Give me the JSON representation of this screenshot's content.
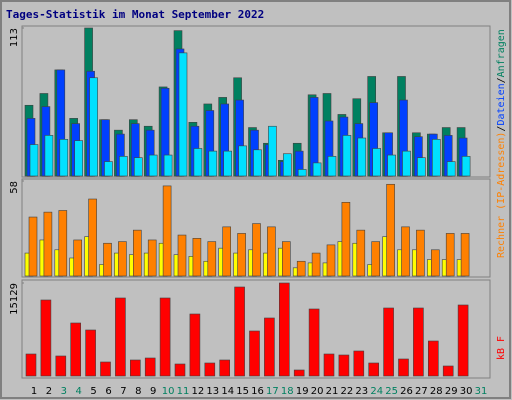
{
  "chart_data": [
    {
      "type": "bar",
      "title": "Tages-Statistik im Monat September 2022",
      "legend_separator": "/",
      "ylim": [
        0,
        113
      ],
      "yticks": [
        113
      ],
      "series": [
        {
          "name": "Anfragen",
          "color": "#008060",
          "values": [
            54,
            63,
            81,
            44,
            113,
            43,
            35,
            43,
            38,
            68,
            111,
            41,
            55,
            60,
            75,
            37,
            25,
            12,
            25,
            62,
            63,
            47,
            59,
            76,
            33,
            76,
            33,
            32,
            37,
            37,
            null
          ]
        },
        {
          "name": "Dateien",
          "color": "#0040ff",
          "values": [
            44,
            53,
            81,
            40,
            80,
            43,
            32,
            40,
            35,
            67,
            97,
            38,
            50,
            55,
            58,
            35,
            24,
            11,
            19,
            60,
            42,
            45,
            40,
            56,
            33,
            58,
            30,
            32,
            31,
            29,
            null
          ]
        },
        {
          "color": "#00e0ff",
          "values": [
            24,
            31,
            28,
            27,
            75,
            11,
            15,
            14,
            16,
            16,
            94,
            21,
            19,
            19,
            23,
            20,
            38,
            17,
            5,
            10,
            15,
            31,
            29,
            21,
            16,
            19,
            14,
            28,
            11,
            15,
            null
          ]
        }
      ]
    },
    {
      "type": "bar",
      "ylim": [
        0,
        58
      ],
      "yticks": [
        58
      ],
      "series": [
        {
          "color": "#ffff00",
          "values": [
            14,
            22,
            16,
            11,
            24,
            7,
            14,
            13,
            14,
            20,
            13,
            12,
            9,
            17,
            14,
            16,
            14,
            17,
            5,
            8,
            8,
            21,
            20,
            7,
            24,
            16,
            16,
            10,
            10,
            10,
            null
          ]
        },
        {
          "name": "Rechner (IP-Adressen)",
          "color": "#ff8000",
          "values": [
            36,
            39,
            40,
            22,
            47,
            20,
            21,
            28,
            22,
            55,
            25,
            23,
            21,
            30,
            26,
            32,
            30,
            21,
            9,
            14,
            19,
            45,
            28,
            21,
            56,
            30,
            28,
            16,
            26,
            26,
            null
          ]
        }
      ]
    },
    {
      "type": "bar",
      "ylim": [
        0,
        15129
      ],
      "yticks": [
        15129
      ],
      "categories": [
        "1",
        "2",
        "3",
        "4",
        "5",
        "6",
        "7",
        "8",
        "9",
        "10",
        "11",
        "12",
        "13",
        "14",
        "15",
        "16",
        "17",
        "18",
        "19",
        "20",
        "21",
        "22",
        "23",
        "24",
        "25",
        "26",
        "27",
        "28",
        "29",
        "30",
        "31"
      ],
      "label_colors": [
        "#000",
        "#000",
        "#008060",
        "#008060",
        "#000",
        "#000",
        "#000",
        "#000",
        "#000",
        "#008060",
        "#008060",
        "#000",
        "#000",
        "#000",
        "#000",
        "#000",
        "#008060",
        "#008060",
        "#000",
        "#000",
        "#000",
        "#000",
        "#000",
        "#008060",
        "#008060",
        "#000",
        "#000",
        "#000",
        "#000",
        "#000",
        "#008060"
      ],
      "series": [
        {
          "name": "kB F",
          "color": "#ff0000",
          "values": [
            3579,
            12365,
            3254,
            8622,
            7483,
            2278,
            12690,
            2603,
            2928,
            12690,
            1952,
            10086,
            2115,
            2603,
            14479,
            7321,
            9436,
            15129,
            976,
            10900,
            3579,
            3416,
            4067,
            2115,
            11062,
            2766,
            11062,
            5694,
            1627,
            11551,
            null
          ]
        }
      ]
    }
  ]
}
